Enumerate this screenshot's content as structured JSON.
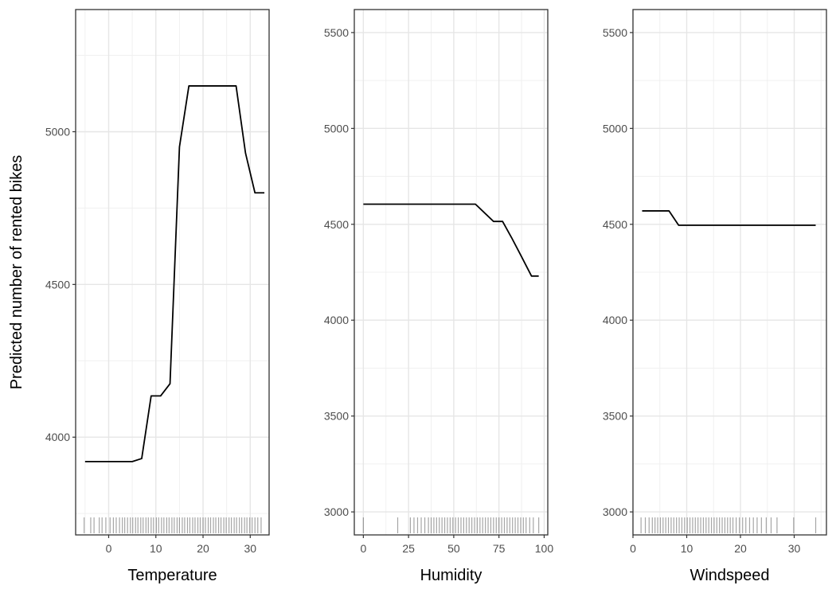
{
  "figure": {
    "ylabel": "Predicted number of rented bikes"
  },
  "chart_data": [
    {
      "type": "line",
      "xlabel": "Temperature",
      "xlim": [
        -7,
        34
      ],
      "ylim": [
        3680,
        5400
      ],
      "xticks": [
        0,
        10,
        20,
        30
      ],
      "yticks": [
        4000,
        4500,
        5000
      ],
      "x": [
        -5,
        5,
        7,
        9,
        11,
        13,
        15,
        17,
        19,
        21,
        23,
        25,
        27,
        29,
        31,
        33
      ],
      "y": [
        3920,
        3920,
        3930,
        4135,
        4135,
        4175,
        4950,
        5150,
        5150,
        5150,
        5150,
        5150,
        5150,
        4930,
        4800,
        4800
      ],
      "rug": [
        -5.2,
        -3.8,
        -3.1,
        -2.0,
        -1.4,
        -0.6,
        0.3,
        1.0,
        1.6,
        2.3,
        2.9,
        3.4,
        4.0,
        4.6,
        5.1,
        5.7,
        6.2,
        6.8,
        7.3,
        7.9,
        8.4,
        9.0,
        9.5,
        10.1,
        10.6,
        11.2,
        11.7,
        12.3,
        12.8,
        13.4,
        13.9,
        14.5,
        15.0,
        15.6,
        16.1,
        16.7,
        17.2,
        17.8,
        18.3,
        18.9,
        19.4,
        20.0,
        20.5,
        21.1,
        21.6,
        22.2,
        22.7,
        23.3,
        23.8,
        24.4,
        24.9,
        25.5,
        26.0,
        26.6,
        27.1,
        27.7,
        28.2,
        28.8,
        29.3,
        29.9,
        30.4,
        31.0,
        31.6,
        32.3
      ]
    },
    {
      "type": "line",
      "xlabel": "Humidity",
      "xlim": [
        -5,
        102
      ],
      "ylim": [
        2880,
        5620
      ],
      "xticks": [
        0,
        25,
        50,
        75,
        100
      ],
      "yticks": [
        3000,
        3500,
        4000,
        4500,
        5000,
        5500
      ],
      "x": [
        0,
        10,
        20,
        30,
        40,
        50,
        62,
        72,
        77,
        82,
        87,
        93,
        97
      ],
      "y": [
        4605,
        4605,
        4605,
        4605,
        4605,
        4605,
        4605,
        4515,
        4515,
        4430,
        4340,
        4230,
        4230
      ],
      "rug": [
        0,
        19,
        26,
        28,
        30,
        32,
        34,
        36,
        37.5,
        39,
        40.5,
        42,
        43.5,
        45,
        46.5,
        48,
        49.5,
        51,
        52.5,
        54,
        55.5,
        57,
        58.5,
        60,
        61.5,
        63,
        64.5,
        66,
        67.5,
        69,
        70.5,
        72,
        73.5,
        75,
        76.5,
        78,
        79.5,
        81,
        82.5,
        84,
        85.5,
        87,
        88.5,
        90,
        92,
        94,
        97
      ]
    },
    {
      "type": "line",
      "xlabel": "Windspeed",
      "xlim": [
        0,
        36
      ],
      "ylim": [
        2880,
        5620
      ],
      "xticks": [
        0,
        10,
        20,
        30
      ],
      "yticks": [
        3000,
        3500,
        4000,
        4500,
        5000,
        5500
      ],
      "x": [
        1.7,
        4,
        6.7,
        8.5,
        12,
        16,
        20,
        24,
        28,
        34
      ],
      "y": [
        4570,
        4570,
        4570,
        4495,
        4495,
        4495,
        4495,
        4495,
        4495,
        4495
      ],
      "rug": [
        1.5,
        2.3,
        3.0,
        3.6,
        4.1,
        4.6,
        5.1,
        5.6,
        6.1,
        6.6,
        7.1,
        7.6,
        8.1,
        8.6,
        9.1,
        9.6,
        10.1,
        10.6,
        11.1,
        11.6,
        12.1,
        12.6,
        13.1,
        13.6,
        14.1,
        14.6,
        15.1,
        15.6,
        16.1,
        16.6,
        17.1,
        17.6,
        18.1,
        18.6,
        19.2,
        19.8,
        20.4,
        21.0,
        21.7,
        22.4,
        23.1,
        23.9,
        24.8,
        25.7,
        26.8,
        29.9,
        34.0
      ]
    }
  ]
}
